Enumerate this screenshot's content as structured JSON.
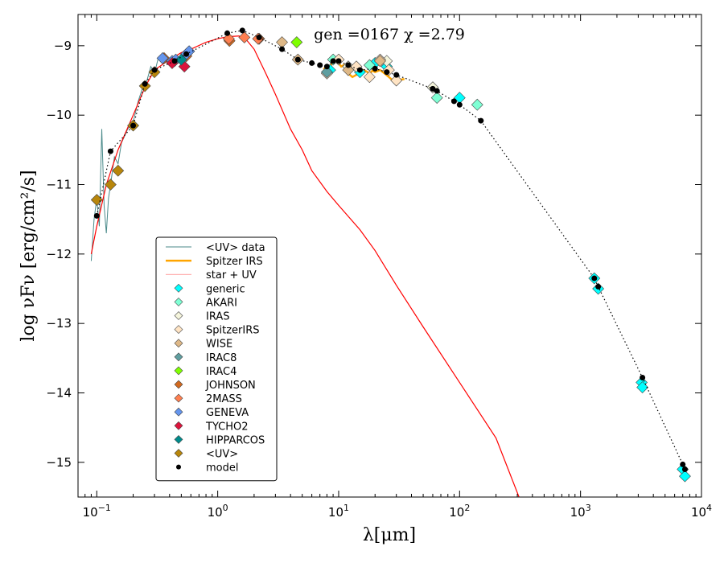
{
  "chart_data": {
    "type": "scatter",
    "title": "gen =0167  χ =2.79",
    "xlabel": "λ[μm]",
    "ylabel": "log νFν [erg/cm²/s]",
    "xscale": "log",
    "xlim": [
      0.07,
      10000
    ],
    "ylim": [
      -15.5,
      -8.55
    ],
    "x_ticks": [
      {
        "value": 0.1,
        "base": "10",
        "exp": "−1"
      },
      {
        "value": 1,
        "base": "10",
        "exp": "0"
      },
      {
        "value": 10,
        "base": "10",
        "exp": "1"
      },
      {
        "value": 100,
        "base": "10",
        "exp": "2"
      },
      {
        "value": 1000,
        "base": "10",
        "exp": "3"
      },
      {
        "value": 10000,
        "base": "10",
        "exp": "4"
      }
    ],
    "y_ticks": [
      {
        "value": -9,
        "label": "−9"
      },
      {
        "value": -10,
        "label": "−10"
      },
      {
        "value": -11,
        "label": "−11"
      },
      {
        "value": -12,
        "label": "−12"
      },
      {
        "value": -13,
        "label": "−13"
      },
      {
        "value": -14,
        "label": "−14"
      },
      {
        "value": -15,
        "label": "−15"
      }
    ],
    "legend_position": "lower-left",
    "legend": [
      {
        "label": "<UV> data",
        "kind": "line",
        "color": "#4a8a8a"
      },
      {
        "label": "Spitzer IRS",
        "kind": "thickline",
        "color": "#ffa500"
      },
      {
        "label": "star + UV",
        "kind": "thinline",
        "color": "#ff6060"
      },
      {
        "label": "generic",
        "kind": "diamond",
        "color": "#00ffff"
      },
      {
        "label": "AKARI",
        "kind": "diamond",
        "color": "#7fffd4"
      },
      {
        "label": "IRAS",
        "kind": "diamond",
        "color": "#f5f5dc"
      },
      {
        "label": "SpitzerIRS",
        "kind": "diamond",
        "color": "#ffe4c4"
      },
      {
        "label": "WISE",
        "kind": "diamond",
        "color": "#deb887"
      },
      {
        "label": "IRAC8",
        "kind": "diamond",
        "color": "#5f9ea0"
      },
      {
        "label": "IRAC4",
        "kind": "diamond",
        "color": "#7fff00"
      },
      {
        "label": "JOHNSON",
        "kind": "diamond",
        "color": "#d2691e"
      },
      {
        "label": "2MASS",
        "kind": "diamond",
        "color": "#ff7f50"
      },
      {
        "label": "GENEVA",
        "kind": "diamond",
        "color": "#6495ed"
      },
      {
        "label": "TYCHO2",
        "kind": "diamond",
        "color": "#dc143c"
      },
      {
        "label": "HIPPARCOS",
        "kind": "diamond",
        "color": "#008b8b"
      },
      {
        "label": "<UV>",
        "kind": "diamond",
        "color": "#b8860b"
      },
      {
        "label": "model",
        "kind": "dot",
        "color": "#000000"
      }
    ],
    "series": [
      {
        "name": "<UV> data",
        "kind": "uvspectrum",
        "color": "#4a8a8a",
        "x": [
          0.09,
          0.095,
          0.1,
          0.105,
          0.11,
          0.115,
          0.12,
          0.125,
          0.13,
          0.14,
          0.15,
          0.16,
          0.17,
          0.18,
          0.2,
          0.22,
          0.24,
          0.26,
          0.28,
          0.3,
          0.32
        ],
        "y": [
          -12.1,
          -11.5,
          -11.2,
          -11.6,
          -10.2,
          -11.3,
          -11.7,
          -11.2,
          -11.0,
          -10.6,
          -10.7,
          -10.4,
          -10.3,
          -10.2,
          -10.1,
          -9.8,
          -9.6,
          -9.5,
          -9.3,
          -9.4,
          -9.2
        ]
      },
      {
        "name": "Spitzer IRS",
        "kind": "line",
        "color": "#ffa500",
        "x": [
          7.5,
          8,
          8.5,
          9,
          9.5,
          10,
          10.5,
          11,
          11.5,
          12,
          13,
          14,
          15,
          16,
          17,
          18,
          19,
          20,
          22,
          24,
          26,
          28,
          30,
          35
        ],
        "y": [
          -9.32,
          -9.36,
          -9.3,
          -9.22,
          -9.2,
          -9.25,
          -9.3,
          -9.28,
          -9.33,
          -9.4,
          -9.45,
          -9.42,
          -9.38,
          -9.35,
          -9.37,
          -9.4,
          -9.36,
          -9.38,
          -9.35,
          -9.4,
          -9.45,
          -9.5,
          -9.5,
          -9.48
        ]
      },
      {
        "name": "star + UV",
        "kind": "line",
        "color": "#ff0000",
        "x": [
          0.09,
          0.1,
          0.12,
          0.15,
          0.2,
          0.25,
          0.3,
          0.4,
          0.5,
          0.6,
          0.8,
          1.0,
          1.2,
          1.5,
          1.7,
          2.0,
          2.5,
          3,
          4,
          5,
          6,
          8,
          10,
          15,
          20,
          30,
          50,
          100,
          200,
          310
        ],
        "y": [
          -12.0,
          -11.6,
          -11.0,
          -10.5,
          -10.0,
          -9.6,
          -9.35,
          -9.2,
          -9.1,
          -9.05,
          -8.95,
          -8.9,
          -8.87,
          -8.86,
          -8.9,
          -9.05,
          -9.4,
          -9.7,
          -10.2,
          -10.5,
          -10.8,
          -11.1,
          -11.3,
          -11.65,
          -11.95,
          -12.45,
          -13.05,
          -13.85,
          -14.65,
          -15.5
        ]
      },
      {
        "name": "generic",
        "kind": "diamond",
        "color": "#00ffff",
        "x": [
          8.5,
          12,
          15,
          20,
          25,
          100,
          1300,
          1400,
          3200,
          3250,
          7000,
          7300
        ],
        "y": [
          -9.35,
          -9.3,
          -9.38,
          -9.25,
          -9.3,
          -9.75,
          -12.35,
          -12.5,
          -13.85,
          -13.92,
          -15.1,
          -15.2
        ]
      },
      {
        "name": "AKARI",
        "kind": "diamond",
        "color": "#7fffd4",
        "x": [
          9,
          18,
          65,
          140
        ],
        "y": [
          -9.2,
          -9.28,
          -9.75,
          -9.85
        ]
      },
      {
        "name": "IRAS",
        "kind": "diamond",
        "color": "#f5f5dc",
        "x": [
          12,
          25,
          60
        ],
        "y": [
          -9.3,
          -9.22,
          -9.6
        ]
      },
      {
        "name": "SpitzerIRS",
        "kind": "diamond",
        "color": "#ffe4c4",
        "x": [
          8,
          10,
          14,
          18,
          22,
          26,
          30
        ],
        "y": [
          -9.4,
          -9.2,
          -9.3,
          -9.45,
          -9.2,
          -9.35,
          -9.5
        ]
      },
      {
        "name": "WISE",
        "kind": "diamond",
        "color": "#deb887",
        "x": [
          3.4,
          4.6,
          12,
          22
        ],
        "y": [
          -8.95,
          -9.2,
          -9.35,
          -9.22
        ]
      },
      {
        "name": "IRAC8",
        "kind": "diamond",
        "color": "#5f9ea0",
        "x": [
          8
        ],
        "y": [
          -9.38
        ]
      },
      {
        "name": "IRAC4",
        "kind": "diamond",
        "color": "#7fff00",
        "x": [
          4.5
        ],
        "y": [
          -8.95
        ]
      },
      {
        "name": "JOHNSON",
        "kind": "diamond",
        "color": "#d2691e",
        "x": [
          0.36,
          0.44,
          0.55,
          1.25,
          2.2
        ],
        "y": [
          -9.18,
          -9.22,
          -9.15,
          -8.93,
          -8.9
        ]
      },
      {
        "name": "2MASS",
        "kind": "diamond",
        "color": "#ff7f50",
        "x": [
          1.235,
          1.662,
          2.159
        ],
        "y": [
          -8.9,
          -8.88,
          -8.9
        ]
      },
      {
        "name": "GENEVA",
        "kind": "diamond",
        "color": "#6495ed",
        "x": [
          0.35,
          0.42,
          0.45,
          0.55,
          0.58
        ],
        "y": [
          -9.18,
          -9.22,
          -9.2,
          -9.12,
          -9.08
        ]
      },
      {
        "name": "TYCHO2",
        "kind": "diamond",
        "color": "#dc143c",
        "x": [
          0.42,
          0.53
        ],
        "y": [
          -9.25,
          -9.3
        ]
      },
      {
        "name": "HIPPARCOS",
        "kind": "diamond",
        "color": "#008b8b",
        "x": [
          0.5
        ],
        "y": [
          -9.2
        ]
      },
      {
        "name": "<UV>",
        "kind": "diamond",
        "color": "#b8860b",
        "x": [
          0.1,
          0.13,
          0.15,
          0.2,
          0.25,
          0.3
        ],
        "y": [
          -11.22,
          -11.0,
          -10.8,
          -10.15,
          -9.58,
          -9.38
        ]
      },
      {
        "name": "model",
        "kind": "dot",
        "color": "#000000",
        "x": [
          0.1,
          0.13,
          0.2,
          0.25,
          0.3,
          0.44,
          0.55,
          1.2,
          1.6,
          2.2,
          3.4,
          4.6,
          6,
          7,
          8,
          9,
          10,
          12,
          15,
          20,
          25,
          30,
          60,
          65,
          90,
          100,
          150,
          1300,
          1400,
          3250,
          7000,
          7300
        ],
        "y": [
          -11.45,
          -10.52,
          -10.15,
          -9.55,
          -9.35,
          -9.22,
          -9.12,
          -8.82,
          -8.78,
          -8.88,
          -9.05,
          -9.2,
          -9.25,
          -9.28,
          -9.3,
          -9.22,
          -9.22,
          -9.28,
          -9.35,
          -9.33,
          -9.38,
          -9.42,
          -9.62,
          -9.65,
          -9.8,
          -9.85,
          -10.08,
          -12.35,
          -12.47,
          -13.78,
          -15.03,
          -15.1
        ]
      }
    ]
  }
}
